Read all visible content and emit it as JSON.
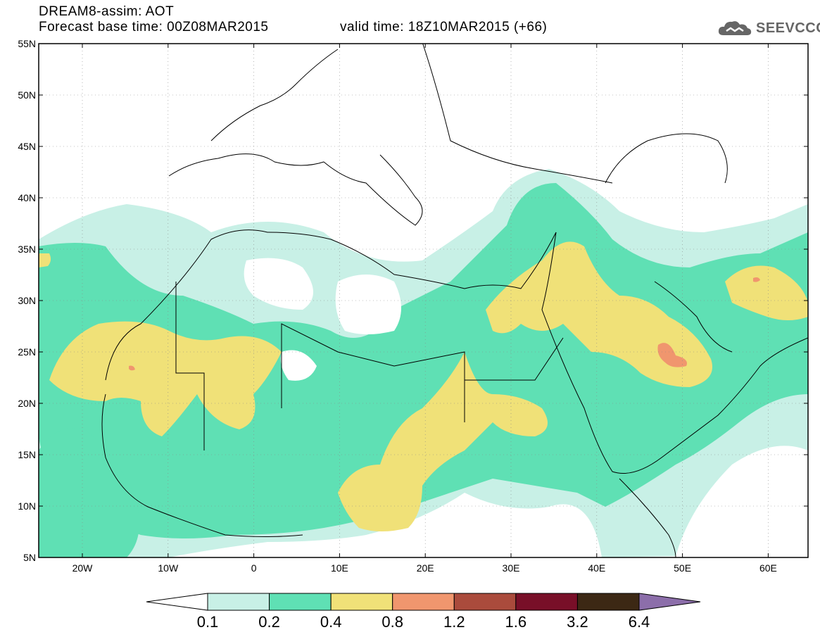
{
  "header": {
    "title": "DREAM8-assim: AOT",
    "base_time": "Forecast base time: 00Z08MAR2015",
    "valid_time": "valid time: 18Z10MAR2015 (+66)"
  },
  "logo": {
    "text": "SEEVCCC",
    "icon": "cloud-icon"
  },
  "map": {
    "lat_labels": [
      "55N",
      "50N",
      "45N",
      "40N",
      "35N",
      "30N",
      "25N",
      "20N",
      "15N",
      "10N",
      "5N"
    ],
    "lon_labels": [
      "20W",
      "10W",
      "0",
      "10E",
      "20E",
      "30E",
      "40E",
      "50E",
      "60E"
    ]
  },
  "colorbar": {
    "labels": [
      "0.1",
      "0.2",
      "0.4",
      "0.8",
      "1.2",
      "1.6",
      "3.2",
      "6.4"
    ],
    "colors": [
      "#c8f0e6",
      "#5fe0b4",
      "#f0e178",
      "#f0966e",
      "#aa4b3c",
      "#780f28",
      "#3c2814",
      "#8c6eaa"
    ]
  },
  "legend_colors": {
    "low": "#c8f0e6",
    "mid": "#5fe0b4",
    "high": "#f0e178",
    "peak": "#f0966e"
  }
}
